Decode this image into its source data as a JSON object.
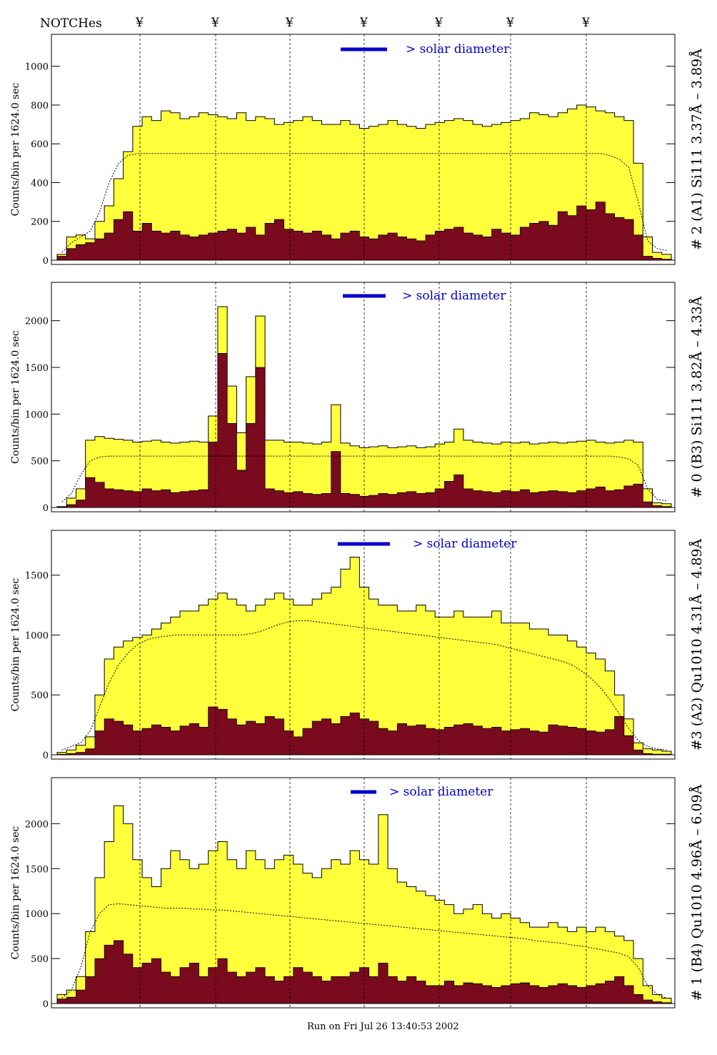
{
  "header": {
    "notches_label": "NOTCHes",
    "notch_symbol": "¥"
  },
  "footer": {
    "run_label": "Run on Fri Jul 26 13:40:53 2002"
  },
  "colors": {
    "fill_total": "#ffff3c",
    "fill_sub": "#7a0a1e",
    "solar_bar": "#0000cc",
    "line": "#000000"
  },
  "chart_data": [
    {
      "type": "area",
      "side_label": "# 2 (A1) Si111  3.37Å – 3.89Å",
      "ylabel": "Counts/bin per   1624.0 sec",
      "solar_text": "> solar diameter",
      "ylim": [
        0,
        1150
      ],
      "yticks": [
        0,
        200,
        400,
        600,
        800,
        1000
      ],
      "total": [
        30,
        120,
        130,
        110,
        200,
        280,
        420,
        560,
        690,
        740,
        720,
        770,
        760,
        730,
        740,
        760,
        750,
        740,
        730,
        760,
        720,
        740,
        730,
        700,
        710,
        720,
        740,
        720,
        700,
        700,
        720,
        700,
        680,
        690,
        700,
        720,
        700,
        690,
        680,
        700,
        710,
        720,
        730,
        720,
        700,
        690,
        700,
        710,
        720,
        730,
        760,
        750,
        740,
        760,
        780,
        800,
        790,
        770,
        760,
        740,
        720,
        500,
        120,
        40,
        30
      ],
      "baseline": [
        20,
        60,
        80,
        90,
        110,
        140,
        210,
        250,
        150,
        190,
        150,
        140,
        150,
        130,
        120,
        130,
        140,
        150,
        160,
        140,
        170,
        130,
        190,
        210,
        160,
        150,
        140,
        150,
        130,
        110,
        140,
        150,
        120,
        110,
        130,
        140,
        120,
        110,
        100,
        130,
        150,
        160,
        170,
        140,
        130,
        120,
        160,
        140,
        130,
        170,
        190,
        200,
        180,
        250,
        230,
        280,
        260,
        300,
        240,
        220,
        210,
        130,
        20,
        10,
        5
      ],
      "model": [
        40,
        90,
        120,
        150,
        250,
        400,
        500,
        540,
        550,
        550,
        550,
        550,
        550,
        550,
        550,
        550,
        550,
        550,
        550,
        550,
        550,
        550,
        550,
        550,
        550,
        550,
        550,
        550,
        550,
        550,
        550,
        550,
        550,
        550,
        550,
        550,
        550,
        550,
        550,
        550,
        550,
        550,
        550,
        550,
        550,
        550,
        550,
        550,
        550,
        550,
        550,
        550,
        550,
        550,
        550,
        550,
        550,
        550,
        540,
        520,
        480,
        300,
        100,
        60,
        50
      ]
    },
    {
      "type": "area",
      "side_label": "# 0 (B3) Si111  3.82Å – 4.33Å",
      "ylabel": "Counts/bin per   1624.0 sec",
      "solar_text": "> solar diameter",
      "ylim": [
        0,
        2380
      ],
      "yticks": [
        0,
        500,
        1000,
        1500,
        2000
      ],
      "total": [
        10,
        100,
        200,
        720,
        760,
        740,
        730,
        720,
        700,
        710,
        720,
        700,
        690,
        700,
        710,
        700,
        980,
        2150,
        1300,
        800,
        1400,
        2050,
        720,
        720,
        700,
        700,
        690,
        680,
        700,
        1100,
        690,
        660,
        640,
        650,
        660,
        640,
        650,
        660,
        640,
        650,
        680,
        700,
        840,
        720,
        700,
        690,
        680,
        700,
        690,
        700,
        680,
        690,
        700,
        690,
        700,
        710,
        720,
        700,
        690,
        700,
        720,
        700,
        200,
        50,
        40
      ],
      "baseline": [
        5,
        30,
        80,
        320,
        270,
        200,
        190,
        180,
        170,
        200,
        180,
        190,
        160,
        170,
        180,
        190,
        700,
        1650,
        900,
        400,
        900,
        1500,
        200,
        180,
        160,
        170,
        150,
        140,
        150,
        600,
        150,
        140,
        120,
        130,
        150,
        140,
        160,
        170,
        150,
        160,
        200,
        280,
        350,
        200,
        180,
        170,
        160,
        180,
        170,
        190,
        160,
        170,
        180,
        170,
        160,
        180,
        200,
        220,
        180,
        190,
        230,
        250,
        60,
        20,
        10
      ],
      "model": [
        60,
        150,
        350,
        500,
        540,
        550,
        550,
        550,
        550,
        550,
        550,
        550,
        550,
        550,
        550,
        550,
        550,
        550,
        550,
        550,
        550,
        550,
        550,
        550,
        550,
        550,
        550,
        550,
        550,
        550,
        550,
        550,
        550,
        550,
        550,
        550,
        550,
        550,
        550,
        550,
        550,
        550,
        550,
        550,
        550,
        550,
        550,
        550,
        550,
        550,
        550,
        550,
        550,
        550,
        550,
        550,
        550,
        550,
        550,
        540,
        520,
        450,
        200,
        90,
        70
      ]
    },
    {
      "type": "area",
      "side_label": "#3 (A2) Qu1010  4.31Å – 4.89Å",
      "ylabel": "Counts/bin per   1624.0 sec",
      "solar_text": "> solar diameter",
      "ylim": [
        0,
        1850
      ],
      "yticks": [
        0,
        500,
        1000,
        1500
      ],
      "total": [
        20,
        40,
        80,
        150,
        500,
        800,
        900,
        950,
        980,
        1000,
        1050,
        1100,
        1150,
        1200,
        1200,
        1250,
        1300,
        1350,
        1300,
        1250,
        1200,
        1250,
        1300,
        1350,
        1300,
        1250,
        1250,
        1300,
        1350,
        1400,
        1550,
        1650,
        1400,
        1300,
        1250,
        1250,
        1200,
        1200,
        1250,
        1200,
        1150,
        1150,
        1200,
        1150,
        1150,
        1150,
        1200,
        1100,
        1100,
        1100,
        1050,
        1050,
        1000,
        1000,
        950,
        900,
        850,
        800,
        700,
        500,
        300,
        100,
        50,
        40,
        30
      ],
      "baseline": [
        5,
        10,
        20,
        50,
        200,
        300,
        280,
        250,
        200,
        220,
        250,
        230,
        200,
        240,
        260,
        230,
        400,
        380,
        300,
        250,
        280,
        260,
        320,
        300,
        200,
        150,
        220,
        280,
        300,
        260,
        320,
        350,
        300,
        280,
        220,
        200,
        260,
        240,
        250,
        220,
        210,
        230,
        250,
        260,
        240,
        220,
        230,
        200,
        210,
        220,
        200,
        190,
        250,
        240,
        230,
        220,
        200,
        190,
        210,
        320,
        160,
        40,
        10,
        5,
        5
      ],
      "model": [
        40,
        70,
        100,
        200,
        400,
        600,
        750,
        850,
        920,
        960,
        980,
        990,
        1000,
        1000,
        1000,
        1000,
        1000,
        1000,
        1000,
        1000,
        1010,
        1030,
        1060,
        1090,
        1110,
        1120,
        1120,
        1110,
        1100,
        1090,
        1080,
        1070,
        1060,
        1050,
        1040,
        1030,
        1020,
        1010,
        1000,
        990,
        980,
        970,
        960,
        950,
        940,
        930,
        920,
        900,
        880,
        860,
        840,
        820,
        800,
        780,
        750,
        700,
        640,
        560,
        460,
        340,
        220,
        120,
        70,
        50,
        40
      ]
    },
    {
      "type": "area",
      "side_label": "# 1 (B4) Qu1010 4.96Å – 6.09Å",
      "ylabel": "Counts/bin per   1624.0 sec",
      "solar_text": "> solar diameter",
      "ylim": [
        0,
        2480
      ],
      "yticks": [
        0,
        500,
        1000,
        1500,
        2000
      ],
      "total": [
        100,
        150,
        300,
        800,
        1400,
        1800,
        2200,
        2000,
        1600,
        1400,
        1300,
        1500,
        1700,
        1600,
        1500,
        1550,
        1700,
        1800,
        1600,
        1500,
        1700,
        1600,
        1500,
        1600,
        1650,
        1550,
        1450,
        1400,
        1500,
        1600,
        1550,
        1700,
        1600,
        1550,
        2100,
        1500,
        1350,
        1300,
        1250,
        1200,
        1150,
        1100,
        1000,
        1050,
        1100,
        1000,
        950,
        1000,
        950,
        900,
        850,
        850,
        900,
        850,
        800,
        850,
        800,
        850,
        800,
        750,
        700,
        500,
        200,
        100,
        60
      ],
      "baseline": [
        50,
        70,
        150,
        300,
        500,
        650,
        700,
        550,
        400,
        450,
        500,
        350,
        300,
        400,
        450,
        300,
        400,
        500,
        350,
        300,
        350,
        400,
        300,
        250,
        300,
        400,
        350,
        300,
        250,
        300,
        300,
        350,
        400,
        300,
        450,
        300,
        250,
        300,
        250,
        200,
        200,
        250,
        200,
        230,
        220,
        200,
        180,
        200,
        220,
        230,
        200,
        180,
        200,
        220,
        200,
        180,
        200,
        220,
        250,
        300,
        200,
        100,
        40,
        20,
        10
      ],
      "model": [
        60,
        150,
        400,
        800,
        1000,
        1100,
        1110,
        1100,
        1090,
        1080,
        1070,
        1060,
        1060,
        1060,
        1050,
        1050,
        1040,
        1040,
        1030,
        1020,
        1010,
        1000,
        990,
        980,
        970,
        960,
        950,
        940,
        930,
        920,
        910,
        900,
        890,
        880,
        870,
        860,
        850,
        840,
        830,
        820,
        810,
        800,
        790,
        780,
        770,
        760,
        750,
        740,
        730,
        720,
        700,
        690,
        680,
        670,
        650,
        640,
        620,
        600,
        580,
        560,
        520,
        400,
        200,
        100,
        60
      ]
    }
  ]
}
